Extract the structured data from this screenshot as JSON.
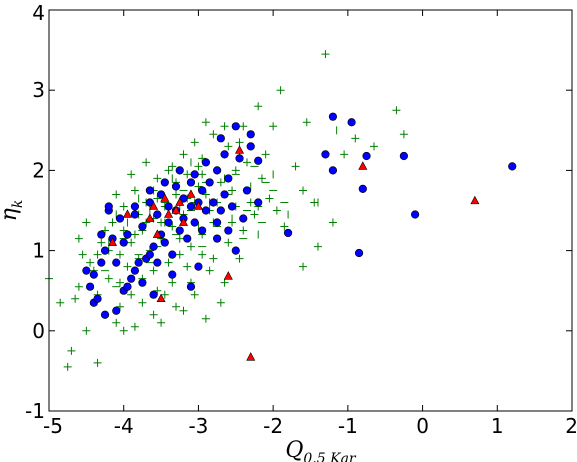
{
  "chart_data": {
    "type": "scatter",
    "title": "",
    "xlabel": {
      "main": "Q",
      "sub": "0.5 Kar"
    },
    "ylabel": {
      "main": "η",
      "sub": "k"
    },
    "xlim": [
      -5,
      2
    ],
    "ylim": [
      -1,
      4
    ],
    "xticks": [
      "-5",
      "-4",
      "-3",
      "-2",
      "-1",
      "0",
      "1",
      "2"
    ],
    "yticks": [
      "-1",
      "0",
      "1",
      "2",
      "3",
      "4"
    ],
    "grid": false,
    "legend": "none",
    "colors": {
      "plus": "#007f00",
      "circle": "#0000ff",
      "triangle": "#ff0000",
      "frame": "#000000"
    },
    "series": [
      {
        "marker": "plus",
        "color": "#007f00",
        "points": [
          [
            -1.3,
            3.45
          ],
          [
            -0.35,
            2.75
          ],
          [
            -1.55,
            2.6
          ],
          [
            -1.9,
            3.0
          ],
          [
            -2.0,
            2.55
          ],
          [
            -2.1,
            2.2
          ],
          [
            -1.7,
            2.05
          ],
          [
            -1.6,
            1.75
          ],
          [
            -1.45,
            1.6
          ],
          [
            -1.2,
            1.35
          ],
          [
            -1.4,
            1.05
          ],
          [
            -1.85,
            1.3
          ],
          [
            -1.6,
            0.8
          ],
          [
            -0.9,
            2.4
          ],
          [
            -1.05,
            2.2
          ],
          [
            -0.65,
            2.3
          ],
          [
            -0.25,
            2.45
          ],
          [
            -2.2,
            2.8
          ],
          [
            -2.4,
            2.55
          ],
          [
            -2.6,
            2.3
          ],
          [
            -2.15,
            1.9
          ],
          [
            -2.35,
            1.75
          ],
          [
            -2.5,
            1.55
          ],
          [
            -2.7,
            1.85
          ],
          [
            -2.25,
            1.45
          ],
          [
            -2.05,
            1.65
          ],
          [
            -2.6,
            1.1
          ],
          [
            -2.45,
            0.9
          ],
          [
            -2.85,
            0.75
          ],
          [
            -3.1,
            0.6
          ],
          [
            -2.7,
            0.35
          ],
          [
            -2.9,
            0.15
          ],
          [
            -3.3,
            0.3
          ],
          [
            -3.55,
            0.5
          ],
          [
            -3.75,
            0.65
          ],
          [
            -3.9,
            0.45
          ],
          [
            -4.05,
            0.3
          ],
          [
            -4.25,
            0.2
          ],
          [
            -4.5,
            0.0
          ],
          [
            -4.7,
            -0.25
          ],
          [
            -4.75,
            -0.45
          ],
          [
            -4.35,
            -0.4
          ],
          [
            -4.85,
            0.35
          ],
          [
            -5.0,
            0.65
          ],
          [
            -4.6,
            0.55
          ],
          [
            -4.4,
            0.75
          ],
          [
            -4.55,
            0.95
          ],
          [
            -4.3,
            1.1
          ],
          [
            -4.15,
            1.35
          ],
          [
            -4.0,
            1.55
          ],
          [
            -3.85,
            1.75
          ],
          [
            -3.7,
            1.6
          ],
          [
            -3.55,
            1.9
          ],
          [
            -3.35,
            2.05
          ],
          [
            -3.2,
            2.2
          ],
          [
            -3.05,
            2.35
          ],
          [
            -2.95,
            2.15
          ],
          [
            -2.8,
            2.45
          ],
          [
            -3.15,
            1.95
          ],
          [
            -3.0,
            1.8
          ],
          [
            -3.3,
            1.7
          ],
          [
            -3.45,
            1.55
          ],
          [
            -3.6,
            1.4
          ],
          [
            -3.75,
            1.25
          ],
          [
            -3.9,
            1.1
          ],
          [
            -4.05,
            0.95
          ],
          [
            -3.95,
            0.8
          ],
          [
            -3.8,
            0.9
          ],
          [
            -3.65,
            1.0
          ],
          [
            -3.5,
            1.15
          ],
          [
            -3.35,
            1.3
          ],
          [
            -3.2,
            1.45
          ],
          [
            -3.05,
            1.6
          ],
          [
            -2.9,
            1.7
          ],
          [
            -2.75,
            1.6
          ],
          [
            -2.8,
            1.35
          ],
          [
            -2.95,
            1.2
          ],
          [
            -3.1,
            1.05
          ],
          [
            -3.25,
            0.95
          ],
          [
            -3.4,
            0.85
          ],
          [
            -3.6,
            0.75
          ],
          [
            -4.2,
            0.65
          ],
          [
            -4.35,
            0.45
          ],
          [
            -4.1,
            0.1
          ],
          [
            -3.85,
            0.05
          ],
          [
            -3.6,
            0.2
          ],
          [
            -3.35,
            0.6
          ],
          [
            -3.15,
            0.8
          ],
          [
            -2.95,
            0.95
          ],
          [
            -2.75,
            1.15
          ],
          [
            -2.55,
            1.35
          ],
          [
            -2.4,
            1.25
          ],
          [
            -2.3,
            1.6
          ],
          [
            -2.55,
            1.75
          ],
          [
            -2.75,
            2.0
          ],
          [
            -2.95,
            1.95
          ],
          [
            -3.4,
            2.0
          ],
          [
            -3.6,
            1.75
          ],
          [
            -3.8,
            1.45
          ],
          [
            -4.0,
            1.25
          ],
          [
            -4.2,
            1.0
          ],
          [
            -4.45,
            0.85
          ],
          [
            -4.65,
            0.4
          ],
          [
            -4.0,
            0.0
          ],
          [
            -3.45,
            0.45
          ],
          [
            -3.2,
            0.25
          ],
          [
            -2.65,
            0.6
          ],
          [
            -2.35,
            2.1
          ],
          [
            -2.2,
            1.55
          ],
          [
            -1.95,
            1.5
          ],
          [
            -3.7,
            2.1
          ],
          [
            -3.9,
            1.95
          ],
          [
            -4.1,
            1.7
          ],
          [
            -3.5,
            1.35
          ],
          [
            -3.25,
            1.15
          ],
          [
            -3.05,
            1.35
          ],
          [
            -2.85,
            1.5
          ],
          [
            -3.3,
            1.85
          ],
          [
            -3.15,
            1.65
          ],
          [
            -2.5,
            2.0
          ],
          [
            -2.65,
            2.55
          ],
          [
            -2.9,
            2.6
          ],
          [
            -2.45,
            2.35
          ],
          [
            -3.0,
            2.05
          ],
          [
            -3.55,
            1.65
          ],
          [
            -3.7,
            1.35
          ],
          [
            -3.85,
            1.2
          ],
          [
            -4.25,
            1.25
          ],
          [
            -4.5,
            1.35
          ],
          [
            -4.6,
            1.15
          ],
          [
            -4.35,
            0.95
          ],
          [
            -4.05,
            0.6
          ],
          [
            -3.75,
            0.35
          ],
          [
            -3.5,
            0.1
          ],
          [
            -3.05,
            0.45
          ],
          [
            -2.8,
            0.9
          ]
        ]
      },
      {
        "marker": "hline",
        "color": "#007f00",
        "points": [
          [
            -2.1,
            1.85
          ],
          [
            -2.35,
            1.5
          ],
          [
            -2.6,
            1.7
          ],
          [
            -2.75,
            1.3
          ],
          [
            -3.1,
            1.5
          ],
          [
            -3.3,
            1.2
          ],
          [
            -3.55,
            1.05
          ],
          [
            -3.8,
            0.95
          ],
          [
            -2.25,
            2.05
          ],
          [
            -2.5,
            1.95
          ],
          [
            -2.9,
            1.85
          ],
          [
            -3.2,
            1.75
          ],
          [
            -3.45,
            1.6
          ],
          [
            -4.0,
            1.15
          ],
          [
            -4.25,
            0.75
          ],
          [
            -2.0,
            1.75
          ],
          [
            -1.85,
            1.6
          ],
          [
            -2.15,
            1.35
          ],
          [
            -2.4,
            1.15
          ],
          [
            -2.95,
            1.05
          ],
          [
            -3.65,
            0.85
          ],
          [
            -4.1,
            0.55
          ]
        ]
      },
      {
        "marker": "vline",
        "color": "#007f00",
        "points": [
          [
            -1.15,
            2.5
          ],
          [
            -1.4,
            1.6
          ],
          [
            -1.8,
            1.45
          ],
          [
            -2.0,
            1.95
          ],
          [
            -2.3,
            1.8
          ],
          [
            -2.55,
            1.4
          ],
          [
            -2.85,
            1.6
          ],
          [
            -3.0,
            1.3
          ],
          [
            -3.25,
            1.55
          ],
          [
            -3.45,
            1.35
          ],
          [
            -3.65,
            1.5
          ],
          [
            -3.95,
            1.35
          ],
          [
            -4.2,
            1.1
          ],
          [
            -2.65,
            1.9
          ],
          [
            -3.1,
            2.1
          ],
          [
            -3.35,
            1.9
          ],
          [
            -3.8,
            1.65
          ],
          [
            -4.1,
            1.45
          ],
          [
            -2.2,
            1.2
          ],
          [
            -2.45,
            2.2
          ]
        ]
      },
      {
        "marker": "circle",
        "color": "#0000ff",
        "points": [
          [
            1.2,
            2.05
          ],
          [
            -0.25,
            2.18
          ],
          [
            -0.95,
            2.6
          ],
          [
            -1.2,
            2.67
          ],
          [
            -1.3,
            2.2
          ],
          [
            -1.2,
            2.0
          ],
          [
            -0.75,
            2.18
          ],
          [
            -0.8,
            1.77
          ],
          [
            -0.1,
            1.45
          ],
          [
            -0.85,
            0.97
          ],
          [
            -1.8,
            1.22
          ],
          [
            -2.2,
            2.12
          ],
          [
            -2.3,
            2.45
          ],
          [
            -2.3,
            2.3
          ],
          [
            -2.5,
            2.55
          ],
          [
            -2.7,
            2.4
          ],
          [
            -2.45,
            2.15
          ],
          [
            -2.6,
            1.9
          ],
          [
            -2.75,
            2.0
          ],
          [
            -2.9,
            2.1
          ],
          [
            -2.95,
            1.75
          ],
          [
            -3.1,
            1.85
          ],
          [
            -3.2,
            1.65
          ],
          [
            -3.3,
            1.8
          ],
          [
            -3.4,
            1.55
          ],
          [
            -3.5,
            1.7
          ],
          [
            -3.55,
            1.45
          ],
          [
            -3.65,
            1.6
          ],
          [
            -3.75,
            1.3
          ],
          [
            -3.85,
            1.45
          ],
          [
            -3.95,
            1.2
          ],
          [
            -4.05,
            1.4
          ],
          [
            -4.2,
            1.5
          ],
          [
            -4.15,
            1.15
          ],
          [
            -4.25,
            1.0
          ],
          [
            -4.3,
            0.85
          ],
          [
            -4.4,
            0.7
          ],
          [
            -4.5,
            0.75
          ],
          [
            -4.45,
            0.55
          ],
          [
            -4.4,
            0.35
          ],
          [
            -4.25,
            0.2
          ],
          [
            -4.1,
            0.25
          ],
          [
            -4.0,
            0.5
          ],
          [
            -3.9,
            0.65
          ],
          [
            -3.8,
            0.85
          ],
          [
            -3.7,
            0.9
          ],
          [
            -3.6,
            1.05
          ],
          [
            -3.5,
            1.2
          ],
          [
            -3.4,
            1.35
          ],
          [
            -3.3,
            1.5
          ],
          [
            -3.2,
            1.4
          ],
          [
            -3.1,
            1.55
          ],
          [
            -3.0,
            1.6
          ],
          [
            -2.9,
            1.5
          ],
          [
            -2.8,
            1.6
          ],
          [
            -2.7,
            1.5
          ],
          [
            -2.65,
            1.7
          ],
          [
            -3.05,
            1.35
          ],
          [
            -3.25,
            1.25
          ],
          [
            -3.45,
            1.1
          ],
          [
            -3.65,
            0.95
          ],
          [
            -3.85,
            0.75
          ],
          [
            -3.95,
            0.55
          ],
          [
            -4.3,
            1.2
          ],
          [
            -4.2,
            1.55
          ],
          [
            -3.55,
            0.85
          ],
          [
            -3.35,
            0.95
          ],
          [
            -3.15,
            1.15
          ],
          [
            -2.95,
            1.25
          ],
          [
            -2.75,
            1.35
          ],
          [
            -2.55,
            1.55
          ],
          [
            -2.35,
            1.75
          ],
          [
            -2.2,
            1.6
          ],
          [
            -2.4,
            1.4
          ],
          [
            -2.6,
            1.25
          ],
          [
            -2.5,
            1.0
          ],
          [
            -3.0,
            0.8
          ],
          [
            -3.75,
            0.6
          ],
          [
            -3.6,
            0.45
          ],
          [
            -3.35,
            0.7
          ],
          [
            -3.1,
            0.55
          ],
          [
            -4.35,
            0.4
          ],
          [
            -3.45,
            1.85
          ],
          [
            -3.25,
            2.0
          ],
          [
            -3.05,
            1.95
          ],
          [
            -2.85,
            1.85
          ],
          [
            -3.65,
            1.75
          ],
          [
            -3.85,
            1.55
          ],
          [
            -4.0,
            1.1
          ],
          [
            -4.1,
            0.85
          ],
          [
            -2.75,
            1.15
          ],
          [
            -2.65,
            2.2
          ]
        ]
      },
      {
        "marker": "triangle",
        "color": "#ff0000",
        "points": [
          [
            0.7,
            1.62
          ],
          [
            -0.8,
            2.05
          ],
          [
            -2.3,
            -0.33
          ],
          [
            -2.6,
            0.68
          ],
          [
            -3.5,
            0.4
          ],
          [
            -3.95,
            1.45
          ],
          [
            -4.15,
            1.1
          ],
          [
            -2.45,
            2.25
          ],
          [
            -3.3,
            1.5
          ],
          [
            -3.45,
            1.65
          ],
          [
            -3.1,
            1.7
          ],
          [
            -3.2,
            1.35
          ],
          [
            -3.65,
            1.4
          ],
          [
            -3.55,
            1.2
          ],
          [
            -3.4,
            1.45
          ],
          [
            -3.0,
            1.55
          ],
          [
            -3.25,
            1.6
          ],
          [
            -3.6,
            1.55
          ]
        ]
      }
    ]
  }
}
